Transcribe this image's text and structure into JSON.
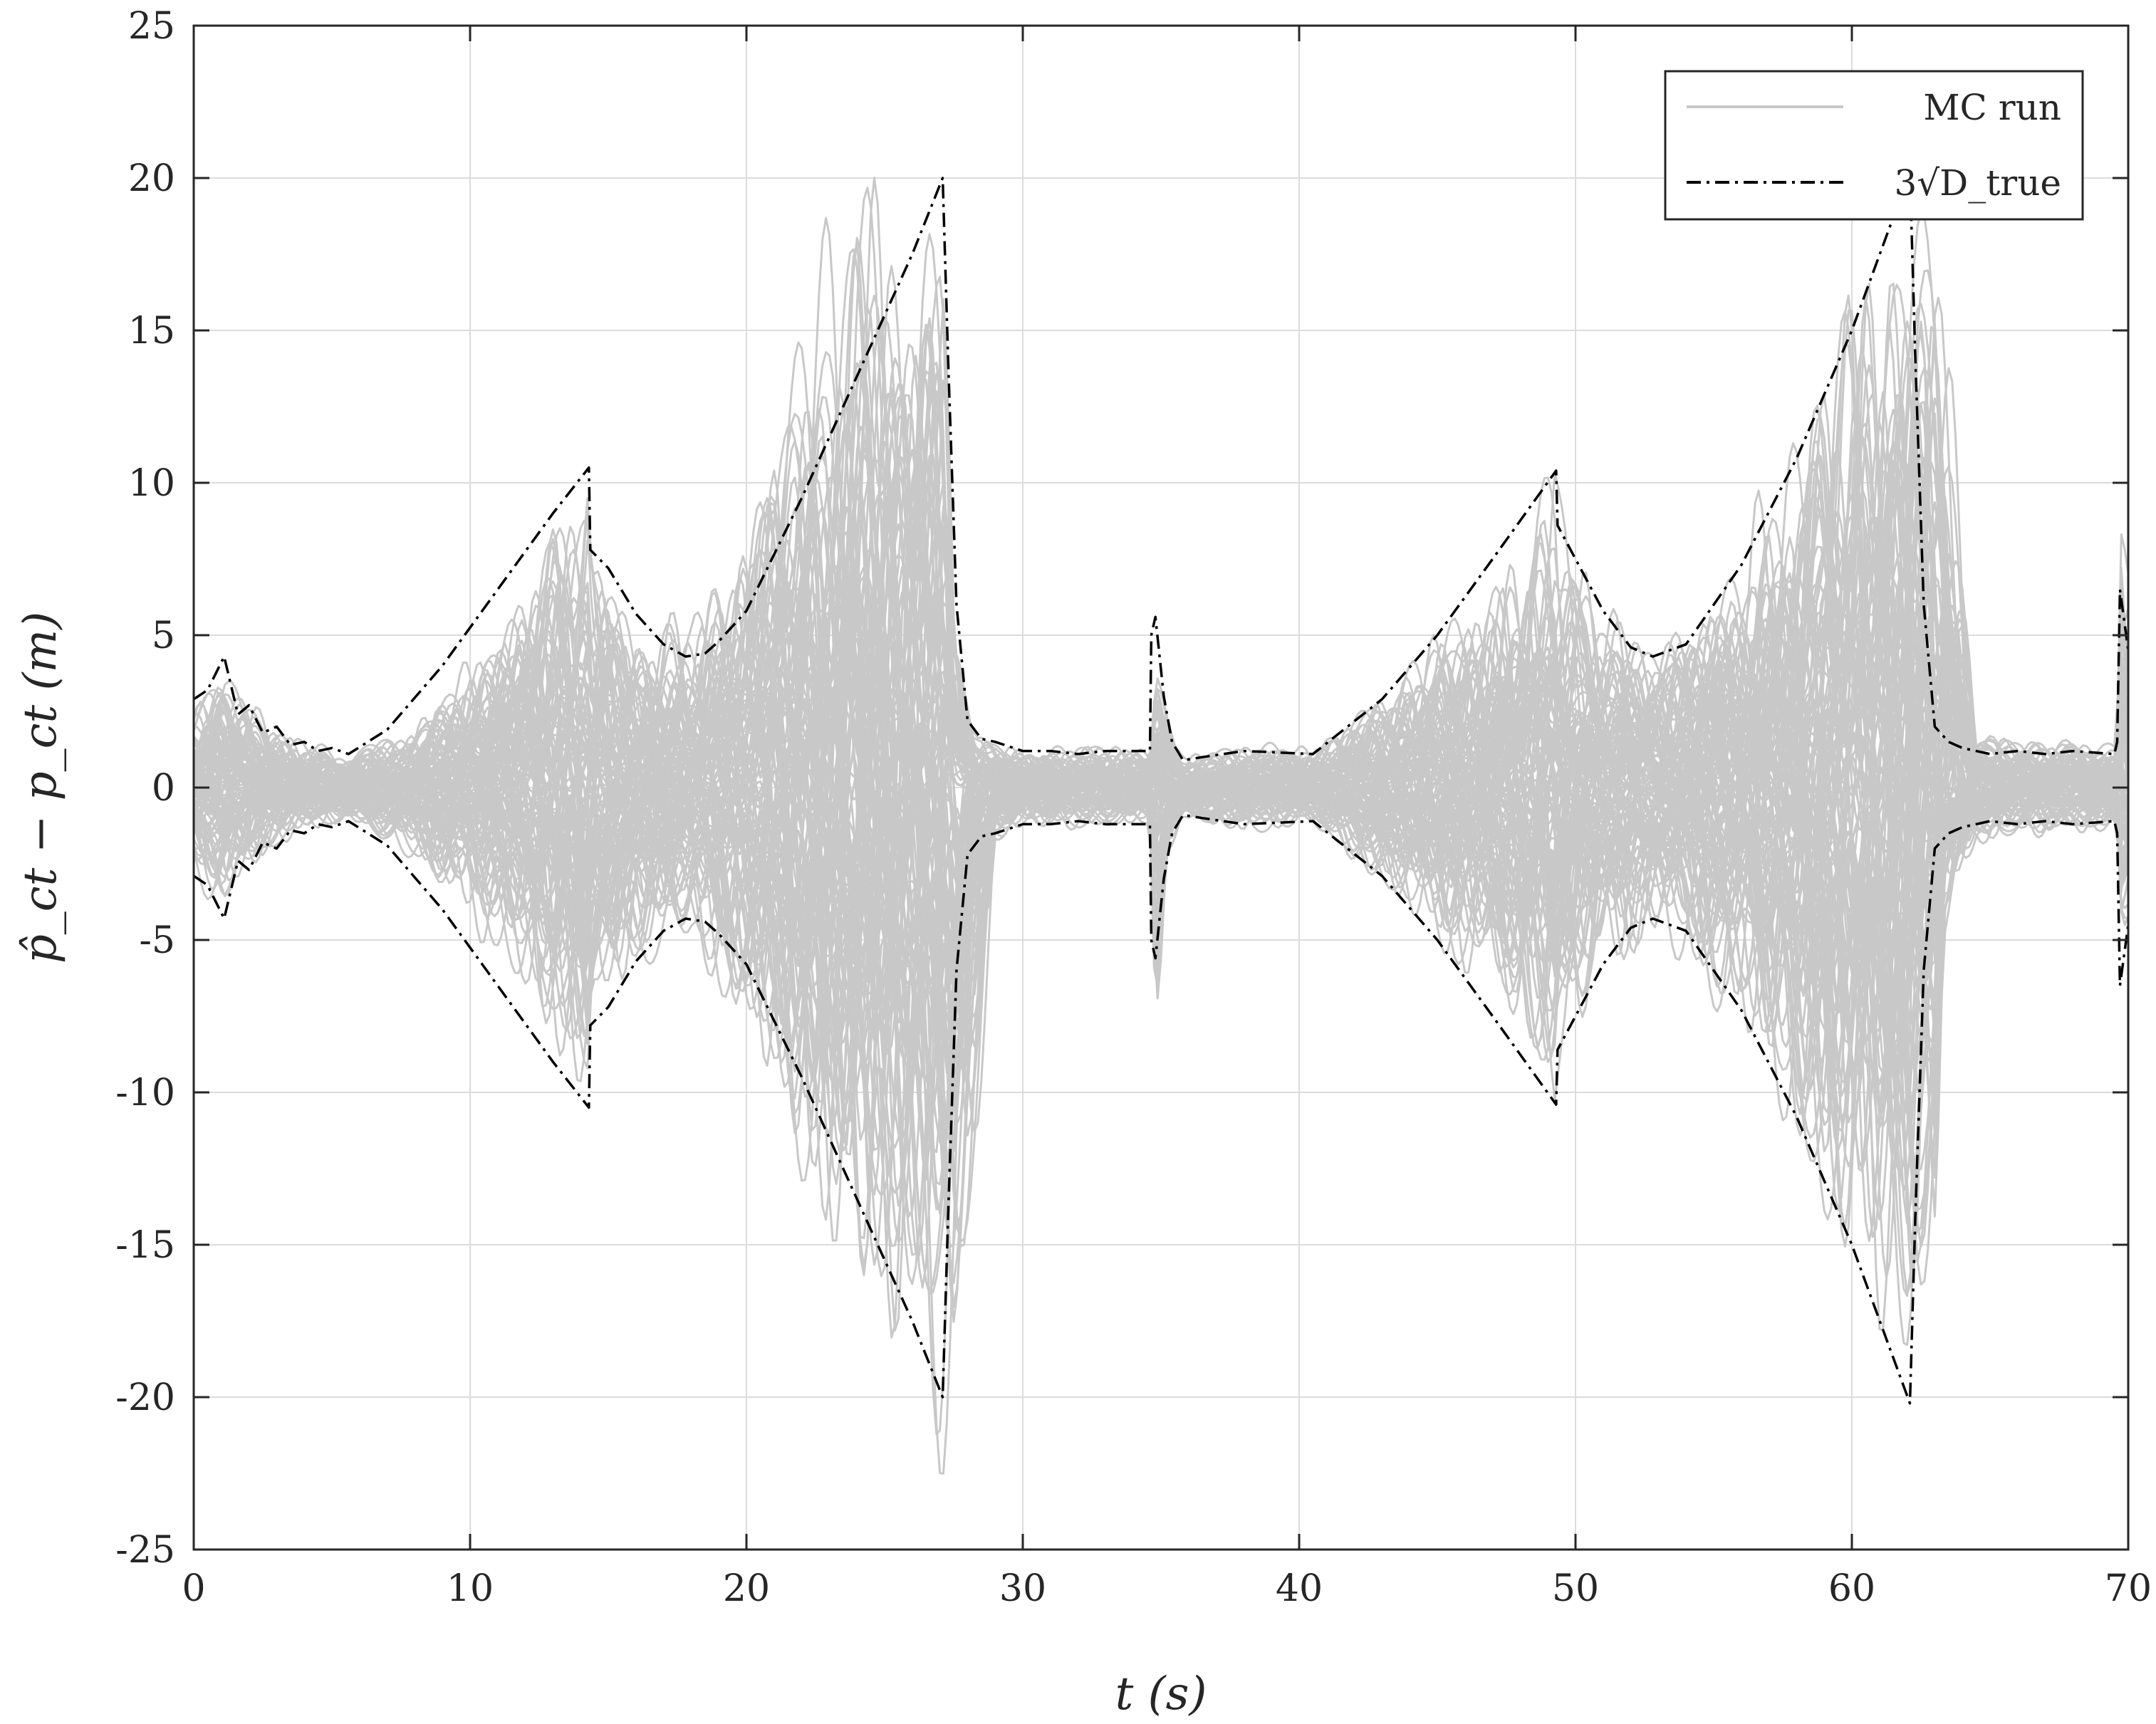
{
  "chart_data": {
    "type": "line",
    "xlabel": "t (s)",
    "ylabel": "p̂_ct − p_ct (m)",
    "xlim": [
      0,
      70
    ],
    "ylim": [
      -25,
      25
    ],
    "grid": true,
    "legend_position": "top-right",
    "x_ticks": [
      "0",
      "10",
      "20",
      "30",
      "40",
      "50",
      "60",
      "70"
    ],
    "y_ticks": [
      "25",
      "20",
      "15",
      "10",
      "5",
      "0",
      "-5",
      "-10",
      "-15",
      "-20",
      "-25"
    ],
    "legend": [
      {
        "label": "MC run",
        "style": "solid",
        "color": "#c8c8c8"
      },
      {
        "label": "3√D_true",
        "style": "dashdot",
        "color": "#000000"
      }
    ],
    "series": [
      {
        "name": "MC run",
        "color": "#c8c8c8",
        "style": "band",
        "envelope_x": [
          0,
          1.1,
          2,
          3,
          4,
          5.6,
          8,
          12,
          14.3,
          14.4,
          16,
          18,
          20,
          24,
          27.1,
          27.5,
          28.3,
          29,
          30,
          34.6,
          34.8,
          35.2,
          35.8,
          38,
          40.5,
          44,
          48,
          49.3,
          49.4,
          51,
          53,
          56,
          60,
          62.1,
          63,
          63.3,
          64.5,
          66,
          69.6,
          69.7,
          70
        ],
        "envelope_hi": [
          2.8,
          4.2,
          2.8,
          2.0,
          1.5,
          1.1,
          2.2,
          6.5,
          11.3,
          7.8,
          6.0,
          5.0,
          8.5,
          20.8,
          17.2,
          6.0,
          1.8,
          1.6,
          1.3,
          1.3,
          5.0,
          2.5,
          1.0,
          1.5,
          1.3,
          4.0,
          8.0,
          10.6,
          8.8,
          6.0,
          4.6,
          8.0,
          15.5,
          19.0,
          20.0,
          17.5,
          2.0,
          1.5,
          1.5,
          10.7,
          8.5
        ],
        "envelope_lo": [
          -2.8,
          -4.2,
          -2.8,
          -2.0,
          -1.5,
          -1.1,
          -2.2,
          -6.5,
          -11.3,
          -7.8,
          -6.0,
          -5.0,
          -8.5,
          -16.0,
          -20.8,
          -20.5,
          -12.0,
          -1.8,
          -1.3,
          -1.3,
          -9.6,
          -2.5,
          -1.0,
          -1.5,
          -1.3,
          -4.0,
          -8.0,
          -10.6,
          -8.8,
          -6.0,
          -4.6,
          -8.0,
          -15.5,
          -19.0,
          -16.0,
          -5.0,
          -2.0,
          -1.5,
          -1.5,
          -6.5,
          -5.0
        ]
      },
      {
        "name": "3√D_true",
        "color": "#000000",
        "style": "dashdot",
        "x": [
          0,
          0.5,
          1.1,
          1.6,
          2.0,
          2.5,
          3.0,
          3.5,
          4.0,
          4.5,
          5.0,
          5.6,
          7,
          9,
          11,
          13,
          14.3,
          14.35,
          15,
          16,
          17,
          17.8,
          18.5,
          19,
          20,
          22,
          24,
          26,
          27.1,
          27.3,
          27.6,
          28.0,
          28.5,
          29,
          30,
          31,
          32,
          33,
          34.6,
          34.65,
          34.8,
          35.1,
          35.4,
          35.8,
          36.5,
          38,
          40.5,
          43,
          45,
          47,
          49.3,
          49.35,
          50,
          51,
          52,
          52.8,
          54,
          56,
          58,
          60,
          62.1,
          62.3,
          62.6,
          63.0,
          63.5,
          64,
          65,
          66,
          67,
          68,
          69.5,
          69.6,
          69.7,
          70
        ],
        "upper": [
          2.9,
          3.2,
          4.3,
          2.4,
          2.7,
          1.8,
          2.0,
          1.4,
          1.5,
          1.2,
          1.3,
          1.1,
          1.9,
          4.0,
          6.5,
          9.0,
          10.5,
          7.8,
          7.2,
          5.7,
          4.7,
          4.3,
          4.4,
          4.8,
          5.8,
          9.5,
          13.5,
          17.5,
          20.0,
          14.0,
          6.0,
          2.2,
          1.6,
          1.5,
          1.2,
          1.2,
          1.1,
          1.2,
          1.2,
          5.0,
          5.6,
          3.0,
          1.5,
          0.9,
          1.0,
          1.2,
          1.1,
          2.9,
          5.0,
          7.5,
          10.4,
          8.6,
          7.5,
          5.8,
          4.6,
          4.3,
          4.7,
          7.3,
          10.8,
          15.0,
          20.2,
          14.0,
          6.0,
          2.0,
          1.5,
          1.3,
          1.1,
          1.2,
          1.1,
          1.2,
          1.1,
          1.5,
          6.5,
          4.5
        ],
        "lower": [
          -2.9,
          -3.2,
          -4.3,
          -2.4,
          -2.7,
          -1.8,
          -2.0,
          -1.4,
          -1.5,
          -1.2,
          -1.3,
          -1.1,
          -1.9,
          -4.0,
          -6.5,
          -9.0,
          -10.5,
          -7.8,
          -7.2,
          -5.7,
          -4.7,
          -4.3,
          -4.4,
          -4.8,
          -5.8,
          -9.5,
          -13.5,
          -17.5,
          -20.0,
          -14.0,
          -6.0,
          -2.2,
          -1.6,
          -1.5,
          -1.2,
          -1.2,
          -1.1,
          -1.2,
          -1.2,
          -5.0,
          -5.6,
          -3.0,
          -1.5,
          -0.9,
          -1.0,
          -1.2,
          -1.1,
          -2.9,
          -5.0,
          -7.5,
          -10.4,
          -8.6,
          -7.5,
          -5.8,
          -4.6,
          -4.3,
          -4.7,
          -7.3,
          -10.8,
          -15.0,
          -20.2,
          -14.0,
          -6.0,
          -2.0,
          -1.5,
          -1.3,
          -1.1,
          -1.2,
          -1.1,
          -1.2,
          -1.1,
          -1.5,
          -6.5,
          -4.5
        ]
      }
    ]
  }
}
